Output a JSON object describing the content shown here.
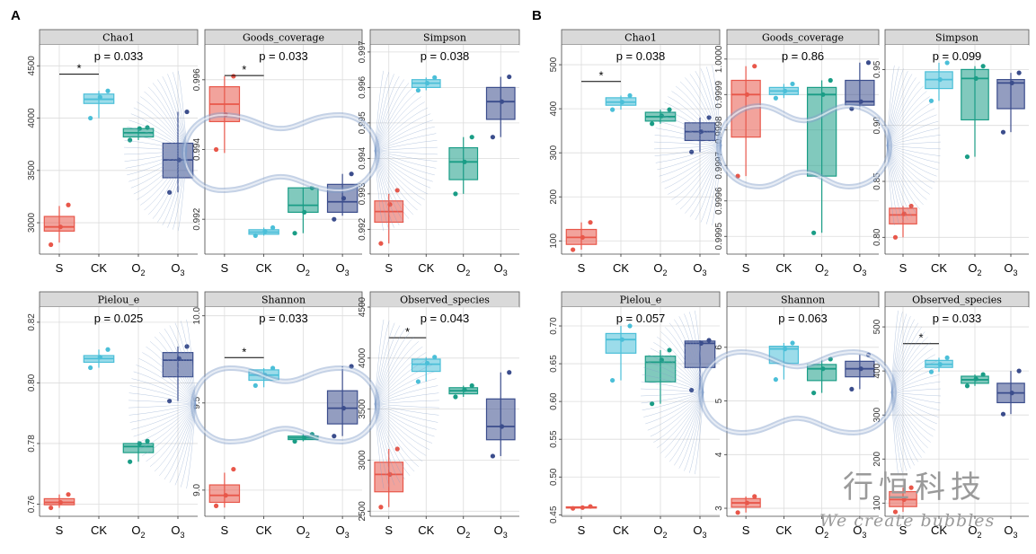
{
  "figure": {
    "letters": [
      "A",
      "B"
    ],
    "x_categories": [
      "S",
      "CK",
      "O2",
      "O3"
    ],
    "colors": {
      "S": "#e8574a",
      "CK": "#4bbfd8",
      "O2": "#1a9d86",
      "O3": "#3b4d8c",
      "strip_bg": "#d9d9d9",
      "grid": "#dcdcdc",
      "bubble": "#7f9cc8"
    },
    "watermark": {
      "main": "行恒科技",
      "sub": "We create bubbles"
    }
  },
  "chart_data": [
    {
      "type": "box",
      "group": "A",
      "title": "Chao1",
      "pvalue": "p = 0.033",
      "ylim": [
        2700,
        4700
      ],
      "yticks": [
        {
          "v": 3000,
          "label": "3000"
        },
        {
          "v": 3500,
          "label": "3500"
        },
        {
          "v": 4000,
          "label": "4000"
        },
        {
          "v": 4500,
          "label": "4500"
        }
      ],
      "boxes": [
        {
          "name": "S",
          "q1": 2920,
          "med": 2960,
          "q3": 3060,
          "lo": 2810,
          "hi": 3160,
          "pts": [
            2790,
            2960,
            3170
          ]
        },
        {
          "name": "CK",
          "q1": 4140,
          "med": 4180,
          "q3": 4230,
          "lo": 4000,
          "hi": 4260,
          "pts": [
            4000,
            4200,
            4260
          ]
        },
        {
          "name": "O2",
          "q1": 3820,
          "med": 3860,
          "q3": 3900,
          "lo": 3790,
          "hi": 3920,
          "pts": [
            3790,
            3900,
            3910
          ]
        },
        {
          "name": "O3",
          "q1": 3430,
          "med": 3600,
          "q3": 3760,
          "lo": 3290,
          "hi": 4060,
          "pts": [
            3290,
            3600,
            4060
          ]
        }
      ],
      "sig": {
        "from": 0,
        "to": 1,
        "y": 4420,
        "label": "*"
      }
    },
    {
      "type": "box",
      "group": "A",
      "title": "Goods_coverage",
      "pvalue": "p = 0.033",
      "ylim": [
        0.991,
        0.997
      ],
      "yticks": [
        {
          "v": 0.992,
          "label": "0.992"
        },
        {
          "v": 0.994,
          "label": "0.994"
        },
        {
          "v": 0.996,
          "label": "0.996"
        }
      ],
      "boxes": [
        {
          "name": "S",
          "q1": 0.9948,
          "med": 0.9953,
          "q3": 0.9958,
          "lo": 0.9939,
          "hi": 0.9961,
          "pts": [
            0.994,
            0.995,
            0.9961
          ]
        },
        {
          "name": "CK",
          "q1": 0.99157,
          "med": 0.99163,
          "q3": 0.9917,
          "lo": 0.99153,
          "hi": 0.99176,
          "pts": [
            0.99153,
            0.99165,
            0.99176
          ]
        },
        {
          "name": "O2",
          "q1": 0.9922,
          "med": 0.9924,
          "q3": 0.9929,
          "lo": 0.9916,
          "hi": 0.9929,
          "pts": [
            0.9916,
            0.9922,
            0.9929
          ]
        },
        {
          "name": "O3",
          "q1": 0.9922,
          "med": 0.9925,
          "q3": 0.993,
          "lo": 0.9921,
          "hi": 0.9933,
          "pts": [
            0.992,
            0.9926,
            0.9933
          ]
        }
      ],
      "sig": {
        "from": 0,
        "to": 1,
        "y": 0.99612,
        "label": "*"
      }
    },
    {
      "type": "box",
      "group": "A",
      "title": "Simpson",
      "pvalue": "p = 0.038",
      "ylim": [
        0.9913,
        0.9972
      ],
      "yticks": [
        {
          "v": 0.992,
          "label": "0.992"
        },
        {
          "v": 0.993,
          "label": "0.993"
        },
        {
          "v": 0.994,
          "label": "0.994"
        },
        {
          "v": 0.995,
          "label": "0.995"
        },
        {
          "v": 0.996,
          "label": "0.996"
        },
        {
          "v": 0.997,
          "label": "0.997"
        }
      ],
      "boxes": [
        {
          "name": "S",
          "q1": 0.9922,
          "med": 0.9925,
          "q3": 0.9928,
          "lo": 0.9916,
          "hi": 0.993,
          "pts": [
            0.9916,
            0.9927,
            0.9931
          ]
        },
        {
          "name": "CK",
          "q1": 0.996,
          "med": 0.99612,
          "q3": 0.99622,
          "lo": 0.99592,
          "hi": 0.99628,
          "pts": [
            0.99592,
            0.99612,
            0.99628
          ]
        },
        {
          "name": "O2",
          "q1": 0.9934,
          "med": 0.9939,
          "q3": 0.9943,
          "lo": 0.993,
          "hi": 0.9946,
          "pts": [
            0.993,
            0.9939,
            0.9946
          ]
        },
        {
          "name": "O3",
          "q1": 0.9951,
          "med": 0.9956,
          "q3": 0.996,
          "lo": 0.9946,
          "hi": 0.9963,
          "pts": [
            0.9946,
            0.9956,
            0.9963
          ]
        }
      ]
    },
    {
      "type": "box",
      "group": "A",
      "title": "Pielou_e",
      "pvalue": "p = 0.025",
      "ylim": [
        0.756,
        0.825
      ],
      "yticks": [
        {
          "v": 0.76,
          "label": "0.76"
        },
        {
          "v": 0.78,
          "label": "0.78"
        },
        {
          "v": 0.8,
          "label": "0.80"
        },
        {
          "v": 0.82,
          "label": "0.82"
        }
      ],
      "boxes": [
        {
          "name": "S",
          "q1": 0.7598,
          "med": 0.7606,
          "q3": 0.7618,
          "lo": 0.7588,
          "hi": 0.7632,
          "pts": [
            0.7588,
            0.7606,
            0.7632
          ]
        },
        {
          "name": "CK",
          "q1": 0.8068,
          "med": 0.808,
          "q3": 0.809,
          "lo": 0.805,
          "hi": 0.811,
          "pts": [
            0.805,
            0.8085,
            0.811
          ]
        },
        {
          "name": "O2",
          "q1": 0.777,
          "med": 0.779,
          "q3": 0.78,
          "lo": 0.774,
          "hi": 0.7808,
          "pts": [
            0.774,
            0.78,
            0.7808
          ]
        },
        {
          "name": "O3",
          "q1": 0.802,
          "med": 0.8075,
          "q3": 0.81,
          "lo": 0.794,
          "hi": 0.812,
          "pts": [
            0.794,
            0.808,
            0.812
          ]
        }
      ]
    },
    {
      "type": "box",
      "group": "A",
      "title": "Shannon",
      "pvalue": "p = 0.033",
      "ylim": [
        8.85,
        10.05
      ],
      "yticks": [
        {
          "v": 9.0,
          "label": "9.0"
        },
        {
          "v": 9.5,
          "label": "9.5"
        },
        {
          "v": 10.0,
          "label": "10.0"
        }
      ],
      "boxes": [
        {
          "name": "S",
          "q1": 8.93,
          "med": 8.97,
          "q3": 9.03,
          "lo": 8.9,
          "hi": 9.1,
          "pts": [
            8.91,
            8.97,
            9.12
          ]
        },
        {
          "name": "CK",
          "q1": 9.63,
          "med": 9.66,
          "q3": 9.69,
          "lo": 9.59,
          "hi": 9.7,
          "pts": [
            9.6,
            9.66,
            9.7
          ]
        },
        {
          "name": "O2",
          "q1": 9.29,
          "med": 9.3,
          "q3": 9.31,
          "lo": 9.28,
          "hi": 9.32,
          "pts": [
            9.28,
            9.3,
            9.32
          ]
        },
        {
          "name": "O3",
          "q1": 9.38,
          "med": 9.47,
          "q3": 9.57,
          "lo": 9.31,
          "hi": 9.71,
          "pts": [
            9.31,
            9.47,
            9.71
          ]
        }
      ],
      "sig": {
        "from": 0,
        "to": 1,
        "y": 9.76,
        "label": "*"
      }
    },
    {
      "type": "box",
      "group": "A",
      "title": "Observed_species",
      "pvalue": "p = 0.043",
      "ylim": [
        2450,
        4500
      ],
      "yticks": [
        {
          "v": 2500,
          "label": "2500"
        },
        {
          "v": 3000,
          "label": "3000"
        },
        {
          "v": 3500,
          "label": "3500"
        },
        {
          "v": 4000,
          "label": "4000"
        },
        {
          "v": 4500,
          "label": "4500"
        }
      ],
      "boxes": [
        {
          "name": "S",
          "q1": 2690,
          "med": 2860,
          "q3": 2980,
          "lo": 2540,
          "hi": 3110,
          "pts": [
            2540,
            2860,
            3110
          ]
        },
        {
          "name": "CK",
          "q1": 3870,
          "med": 3940,
          "q3": 3990,
          "lo": 3770,
          "hi": 4010,
          "pts": [
            3770,
            3950,
            4010
          ]
        },
        {
          "name": "O2",
          "q1": 3650,
          "med": 3680,
          "q3": 3710,
          "lo": 3620,
          "hi": 3730,
          "pts": [
            3620,
            3690,
            3730
          ]
        },
        {
          "name": "O3",
          "q1": 3200,
          "med": 3330,
          "q3": 3600,
          "lo": 3040,
          "hi": 3860,
          "pts": [
            3040,
            3330,
            3860
          ]
        }
      ],
      "sig": {
        "from": 0,
        "to": 1,
        "y": 4200,
        "label": "*"
      }
    },
    {
      "type": "box",
      "group": "B",
      "title": "Chao1",
      "pvalue": "p = 0.038",
      "ylim": [
        70,
        545
      ],
      "yticks": [
        {
          "v": 100,
          "label": "100"
        },
        {
          "v": 200,
          "label": "200"
        },
        {
          "v": 300,
          "label": "300"
        },
        {
          "v": 400,
          "label": "400"
        },
        {
          "v": 500,
          "label": "500"
        }
      ],
      "boxes": [
        {
          "name": "S",
          "q1": 92,
          "med": 108,
          "q3": 126,
          "lo": 80,
          "hi": 142,
          "pts": [
            80,
            108,
            142
          ]
        },
        {
          "name": "CK",
          "q1": 408,
          "med": 415,
          "q3": 425,
          "lo": 398,
          "hi": 430,
          "pts": [
            398,
            415,
            430
          ]
        },
        {
          "name": "O2",
          "q1": 372,
          "med": 382,
          "q3": 392,
          "lo": 366,
          "hi": 398,
          "pts": [
            366,
            384,
            398
          ]
        },
        {
          "name": "O3",
          "q1": 328,
          "med": 348,
          "q3": 368,
          "lo": 302,
          "hi": 380,
          "pts": [
            302,
            348,
            380
          ]
        }
      ],
      "sig": {
        "from": 0,
        "to": 1,
        "y": 462,
        "label": "*"
      }
    },
    {
      "type": "box",
      "group": "B",
      "title": "Goods_coverage",
      "pvalue": "p = 0.86",
      "ylim": [
        0.99945,
        1.00004
      ],
      "yticks": [
        {
          "v": 0.9995,
          "label": "0.9995"
        },
        {
          "v": 0.9996,
          "label": "0.9996"
        },
        {
          "v": 0.9997,
          "label": "0.9997"
        },
        {
          "v": 0.9998,
          "label": "0.9998"
        },
        {
          "v": 0.9999,
          "label": "0.9999"
        },
        {
          "v": 1.0,
          "label": "1.0000"
        }
      ],
      "boxes": [
        {
          "name": "S",
          "q1": 0.99978,
          "med": 0.9999,
          "q3": 0.99994,
          "lo": 0.99967,
          "hi": 0.99998,
          "pts": [
            0.99967,
            0.9999,
            0.99998
          ]
        },
        {
          "name": "CK",
          "q1": 0.9999,
          "med": 0.99991,
          "q3": 0.99992,
          "lo": 0.99989,
          "hi": 0.99993,
          "pts": [
            0.99989,
            0.99991,
            0.99993
          ]
        },
        {
          "name": "O2",
          "q1": 0.99967,
          "med": 0.9999,
          "q3": 0.99992,
          "lo": 0.99951,
          "hi": 0.99994,
          "pts": [
            0.99951,
            0.9999,
            0.99994
          ]
        },
        {
          "name": "O3",
          "q1": 0.99987,
          "med": 0.99988,
          "q3": 0.99994,
          "lo": 0.99986,
          "hi": 0.99999,
          "pts": [
            0.99986,
            0.99988,
            0.99999
          ]
        }
      ]
    },
    {
      "type": "box",
      "group": "B",
      "title": "Simpson",
      "pvalue": "p = 0.099",
      "ylim": [
        0.785,
        0.972
      ],
      "yticks": [
        {
          "v": 0.8,
          "label": "0.80"
        },
        {
          "v": 0.85,
          "label": "0.85"
        },
        {
          "v": 0.9,
          "label": "0.90"
        },
        {
          "v": 0.95,
          "label": "0.95"
        }
      ],
      "boxes": [
        {
          "name": "S",
          "q1": 0.812,
          "med": 0.82,
          "q3": 0.826,
          "lo": 0.8,
          "hi": 0.828,
          "pts": [
            0.8,
            0.821,
            0.828
          ]
        },
        {
          "name": "CK",
          "q1": 0.933,
          "med": 0.941,
          "q3": 0.948,
          "lo": 0.922,
          "hi": 0.956,
          "pts": [
            0.922,
            0.941,
            0.956
          ]
        },
        {
          "name": "O2",
          "q1": 0.905,
          "med": 0.942,
          "q3": 0.95,
          "lo": 0.872,
          "hi": 0.953,
          "pts": [
            0.872,
            0.942,
            0.953
          ]
        },
        {
          "name": "O3",
          "q1": 0.915,
          "med": 0.938,
          "q3": 0.941,
          "lo": 0.894,
          "hi": 0.947,
          "pts": [
            0.894,
            0.938,
            0.947
          ]
        }
      ]
    },
    {
      "type": "box",
      "group": "B",
      "title": "Pielou_e",
      "pvalue": "p = 0.057",
      "ylim": [
        0.448,
        0.725
      ],
      "yticks": [
        {
          "v": 0.45,
          "label": "0.45"
        },
        {
          "v": 0.5,
          "label": "0.50"
        },
        {
          "v": 0.55,
          "label": "0.55"
        },
        {
          "v": 0.6,
          "label": "0.60"
        },
        {
          "v": 0.65,
          "label": "0.65"
        },
        {
          "v": 0.7,
          "label": "0.70"
        }
      ],
      "boxes": [
        {
          "name": "S",
          "q1": 0.459,
          "med": 0.4595,
          "q3": 0.4605,
          "lo": 0.4585,
          "hi": 0.461,
          "pts": [
            0.4585,
            0.4595,
            0.461
          ]
        },
        {
          "name": "CK",
          "q1": 0.664,
          "med": 0.682,
          "q3": 0.69,
          "lo": 0.628,
          "hi": 0.7,
          "pts": [
            0.628,
            0.682,
            0.7
          ]
        },
        {
          "name": "O2",
          "q1": 0.626,
          "med": 0.652,
          "q3": 0.66,
          "lo": 0.597,
          "hi": 0.668,
          "pts": [
            0.597,
            0.655,
            0.668
          ]
        },
        {
          "name": "O3",
          "q1": 0.645,
          "med": 0.677,
          "q3": 0.68,
          "lo": 0.615,
          "hi": 0.681,
          "pts": [
            0.615,
            0.677,
            0.681
          ]
        }
      ]
    },
    {
      "type": "box",
      "group": "B",
      "title": "Shannon",
      "pvalue": "p = 0.063",
      "ylim": [
        2.85,
        6.75
      ],
      "yticks": [
        {
          "v": 3,
          "label": "3"
        },
        {
          "v": 4,
          "label": "4"
        },
        {
          "v": 5,
          "label": "5"
        },
        {
          "v": 6,
          "label": "6"
        }
      ],
      "boxes": [
        {
          "name": "S",
          "q1": 3.02,
          "med": 3.1,
          "q3": 3.18,
          "lo": 2.92,
          "hi": 3.22,
          "pts": [
            2.92,
            3.1,
            3.22
          ]
        },
        {
          "name": "CK",
          "q1": 5.7,
          "med": 5.97,
          "q3": 6.02,
          "lo": 5.4,
          "hi": 6.08,
          "pts": [
            5.4,
            5.97,
            6.08
          ]
        },
        {
          "name": "O2",
          "q1": 5.38,
          "med": 5.6,
          "q3": 5.68,
          "lo": 5.15,
          "hi": 5.78,
          "pts": [
            5.15,
            5.6,
            5.78
          ]
        },
        {
          "name": "O3",
          "q1": 5.45,
          "med": 5.6,
          "q3": 5.74,
          "lo": 5.22,
          "hi": 5.86,
          "pts": [
            5.22,
            5.6,
            5.86
          ]
        }
      ]
    },
    {
      "type": "box",
      "group": "B",
      "title": "Observed_species",
      "pvalue": "p = 0.033",
      "ylim": [
        70,
        545
      ],
      "yticks": [
        {
          "v": 100,
          "label": "100"
        },
        {
          "v": 200,
          "label": "200"
        },
        {
          "v": 300,
          "label": "300"
        },
        {
          "v": 400,
          "label": "400"
        },
        {
          "v": 500,
          "label": "500"
        }
      ],
      "boxes": [
        {
          "name": "S",
          "q1": 92,
          "med": 108,
          "q3": 126,
          "lo": 80,
          "hi": 135,
          "pts": [
            80,
            108,
            135
          ]
        },
        {
          "name": "CK",
          "q1": 408,
          "med": 415,
          "q3": 424,
          "lo": 398,
          "hi": 430,
          "pts": [
            398,
            415,
            430
          ]
        },
        {
          "name": "O2",
          "q1": 372,
          "med": 380,
          "q3": 388,
          "lo": 366,
          "hi": 392,
          "pts": [
            366,
            382,
            392
          ]
        },
        {
          "name": "O3",
          "q1": 328,
          "med": 350,
          "q3": 372,
          "lo": 302,
          "hi": 400,
          "pts": [
            302,
            350,
            400
          ]
        }
      ],
      "sig": {
        "from": 0,
        "to": 1,
        "y": 462,
        "label": "*"
      }
    }
  ]
}
